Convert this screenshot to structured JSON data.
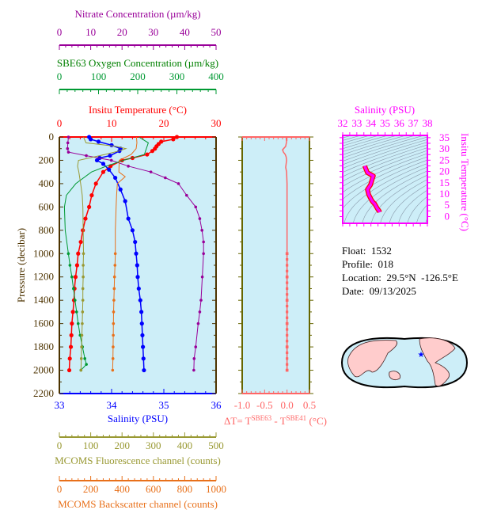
{
  "colors": {
    "temperature": "#ff0000",
    "salinity": "#0000ff",
    "nitrate": "#990099",
    "oxygen": "#009933",
    "oxygen_title": "#008000",
    "fluorescence": "#999933",
    "backscatter": "#e8701a",
    "delta_t": "#ff6666",
    "ts": "#ff00ff",
    "axis": "#4d3300",
    "plot_bg": "#cdeef8",
    "land": "#ffcccc",
    "star": "#0000ff"
  },
  "info": {
    "float_label": "Float:",
    "float": "1532",
    "profile_label": "Profile:",
    "profile": "018",
    "location_label": "Location:",
    "location": "29.5°N  -126.5°E",
    "date_label": "Date:",
    "date": "09/13/2025"
  },
  "map": {
    "icon": "world-map",
    "float_marker": "blue-star",
    "marker_lat": 29.5,
    "marker_lon": -126.5
  },
  "chart_data": [
    {
      "type": "line",
      "name": "profile-panel",
      "ylabel": "Pressure (decibar)",
      "ylim": [
        2200,
        0
      ],
      "yticks": [
        0,
        200,
        400,
        600,
        800,
        1000,
        1200,
        1400,
        1600,
        1800,
        2000,
        2200
      ],
      "grid": false,
      "axes": {
        "nitrate": {
          "label": "Nitrate Concentration (µm/kg)",
          "range": [
            0,
            50
          ],
          "ticks": [
            0,
            10,
            20,
            30,
            40,
            50
          ],
          "position": "top"
        },
        "oxygen": {
          "label": "SBE63 Oxygen Concentration (µm/kg)",
          "range": [
            0,
            400
          ],
          "ticks": [
            0,
            100,
            200,
            300,
            400
          ],
          "position": "top"
        },
        "temperature": {
          "label": "Insitu Temperature (°C)",
          "range": [
            0,
            30
          ],
          "ticks": [
            0,
            10,
            20,
            30
          ],
          "position": "top"
        },
        "salinity": {
          "label": "Salinity (PSU)",
          "range": [
            33,
            36
          ],
          "ticks": [
            33,
            34,
            35,
            36
          ],
          "position": "bottom"
        },
        "fluorescence": {
          "label": "MCOMS Fluorescence channel (counts)",
          "range": [
            0,
            500
          ],
          "ticks": [
            0,
            100,
            200,
            300,
            400,
            500
          ],
          "position": "bottom"
        },
        "backscatter": {
          "label": "MCOMS Backscatter channel (counts)",
          "range": [
            0,
            1000
          ],
          "ticks": [
            0,
            200,
            400,
            600,
            800,
            1000
          ],
          "position": "bottom"
        }
      },
      "series": [
        {
          "axis": "temperature",
          "color": "#ff0000",
          "pressure": [
            0,
            20,
            40,
            60,
            80,
            100,
            120,
            150,
            180,
            200,
            250,
            300,
            400,
            500,
            600,
            700,
            800,
            900,
            1000,
            1100,
            1200,
            1300,
            1400,
            1500,
            1600,
            1700,
            1800,
            1900,
            2000
          ],
          "values": [
            22.5,
            21.8,
            19.5,
            19.0,
            18.6,
            18.3,
            17.8,
            16.8,
            14,
            12,
            9.8,
            8.4,
            7.0,
            6.2,
            5.7,
            5.0,
            4.5,
            4.1,
            3.6,
            3.4,
            3.1,
            2.9,
            2.8,
            2.6,
            2.4,
            2.3,
            2.2,
            2.0,
            1.9
          ]
        },
        {
          "axis": "salinity",
          "color": "#0000ff",
          "pressure": [
            0,
            20,
            40,
            70,
            100,
            120,
            160,
            180,
            200,
            230,
            280,
            350,
            450,
            550,
            700,
            800,
            900,
            1000,
            1100,
            1200,
            1300,
            1400,
            1500,
            1600,
            1700,
            1800,
            1900,
            2000
          ],
          "values": [
            33.57,
            33.6,
            33.75,
            34.0,
            34.17,
            34.15,
            33.97,
            33.77,
            33.72,
            33.84,
            33.95,
            34.07,
            34.17,
            34.26,
            34.32,
            34.4,
            34.45,
            34.47,
            34.49,
            34.5,
            34.52,
            34.55,
            34.57,
            34.58,
            34.59,
            34.6,
            34.61,
            34.62
          ]
        },
        {
          "axis": "nitrate",
          "color": "#990099",
          "pressure": [
            0,
            50,
            100,
            130,
            160,
            200,
            250,
            300,
            350,
            400,
            500,
            600,
            700,
            800,
            900,
            1000,
            1200,
            1400,
            1500,
            1600,
            1800,
            1900,
            2000
          ],
          "values": [
            2.9,
            2.7,
            2.6,
            2.9,
            8.6,
            16.6,
            22,
            29.2,
            33.8,
            38,
            40.6,
            43.5,
            44.8,
            45.5,
            46,
            46,
            45.6,
            45.2,
            44.8,
            44.3,
            43.5,
            43.0,
            42.9
          ]
        },
        {
          "axis": "oxygen",
          "color": "#009933",
          "pressure": [
            0,
            50,
            100,
            150,
            200,
            250,
            300,
            400,
            500,
            600,
            800,
            1000,
            1100,
            1200,
            1300,
            1400,
            1500,
            1600,
            1700,
            1800,
            1900,
            1950,
            2000
          ],
          "values": [
            203,
            227,
            222,
            217,
            163,
            120,
            82,
            42,
            18,
            13,
            15,
            23,
            27,
            32,
            36,
            40,
            44,
            48,
            53,
            59,
            65,
            69,
            55
          ]
        },
        {
          "axis": "fluorescence",
          "color": "#999933",
          "pressure": [
            0,
            50,
            80,
            100,
            120,
            150,
            200,
            250,
            300,
            400,
            500,
            600,
            800,
            1000,
            1100,
            1200,
            1300,
            1400,
            1500,
            1600,
            1700,
            1800,
            1900,
            2000
          ],
          "values": [
            77,
            85,
            180,
            212,
            190,
            145,
            61,
            58,
            62,
            68,
            73,
            75,
            76,
            77,
            76,
            76,
            75,
            75,
            74,
            73,
            72,
            71,
            70,
            69
          ]
        },
        {
          "axis": "backscatter",
          "color": "#e8701a",
          "pressure": [
            0,
            50,
            100,
            150,
            200,
            300,
            340,
            400,
            500,
            600,
            800,
            1000,
            1100,
            1200,
            1300,
            1400,
            1500,
            1600,
            1700,
            1800,
            1900,
            2000
          ],
          "values": [
            492,
            495,
            490,
            458,
            382,
            380,
            420,
            370,
            365,
            362,
            357,
            357,
            355,
            352,
            350,
            348,
            346,
            345,
            344,
            343,
            342,
            340
          ]
        }
      ]
    },
    {
      "type": "line",
      "name": "delta-t-panel",
      "xlabel_prefix": "ΔT= T",
      "xlabel_sup1": "SBE63",
      "xlabel_mid": " - T",
      "xlabel_sup2": "SBE41",
      "xlabel_suffix": " (°C)",
      "xlim": [
        -1.0,
        0.5
      ],
      "xticks": [
        "-1.0",
        "-0.5",
        "0.0",
        "0.5"
      ],
      "ylim": [
        2200,
        0
      ],
      "series": [
        {
          "color": "#ff6666",
          "pressure": [
            0,
            40,
            80,
            110,
            130,
            150,
            170,
            200,
            260,
            300,
            400,
            600,
            800,
            1000,
            1200,
            1400,
            1600,
            1800,
            2000
          ],
          "values": [
            -0.02,
            -0.01,
            -0.03,
            -0.1,
            -0.08,
            -0.04,
            -0.02,
            -0.01,
            -0.03,
            -0.01,
            0,
            0,
            0,
            0,
            0,
            0,
            0,
            0,
            0
          ]
        }
      ]
    },
    {
      "type": "line",
      "name": "ts-diagram",
      "xlabel": "Salinity (PSU)",
      "ylabel": "Insitu Temperature (°C)",
      "xlim": [
        32,
        38
      ],
      "ylim": [
        -3,
        36
      ],
      "xticks": [
        32,
        33,
        34,
        35,
        36,
        37,
        38
      ],
      "yticks": [
        0,
        5,
        10,
        15,
        20,
        25,
        30,
        35
      ],
      "density_contours": true,
      "series": [
        {
          "color": "#ff00ff",
          "salinity": [
            33.57,
            33.6,
            33.75,
            34.0,
            34.17,
            34.1,
            33.97,
            33.75,
            33.84,
            33.95,
            34.07,
            34.17,
            34.26,
            34.32,
            34.45,
            34.5,
            34.55,
            34.6,
            34.62
          ],
          "temperature": [
            22.5,
            21.8,
            19.5,
            18.6,
            18.0,
            16.8,
            14,
            12,
            9.8,
            8.4,
            7.0,
            6.2,
            5.7,
            5.0,
            3.6,
            3.1,
            2.8,
            2.2,
            1.9
          ]
        }
      ]
    }
  ]
}
